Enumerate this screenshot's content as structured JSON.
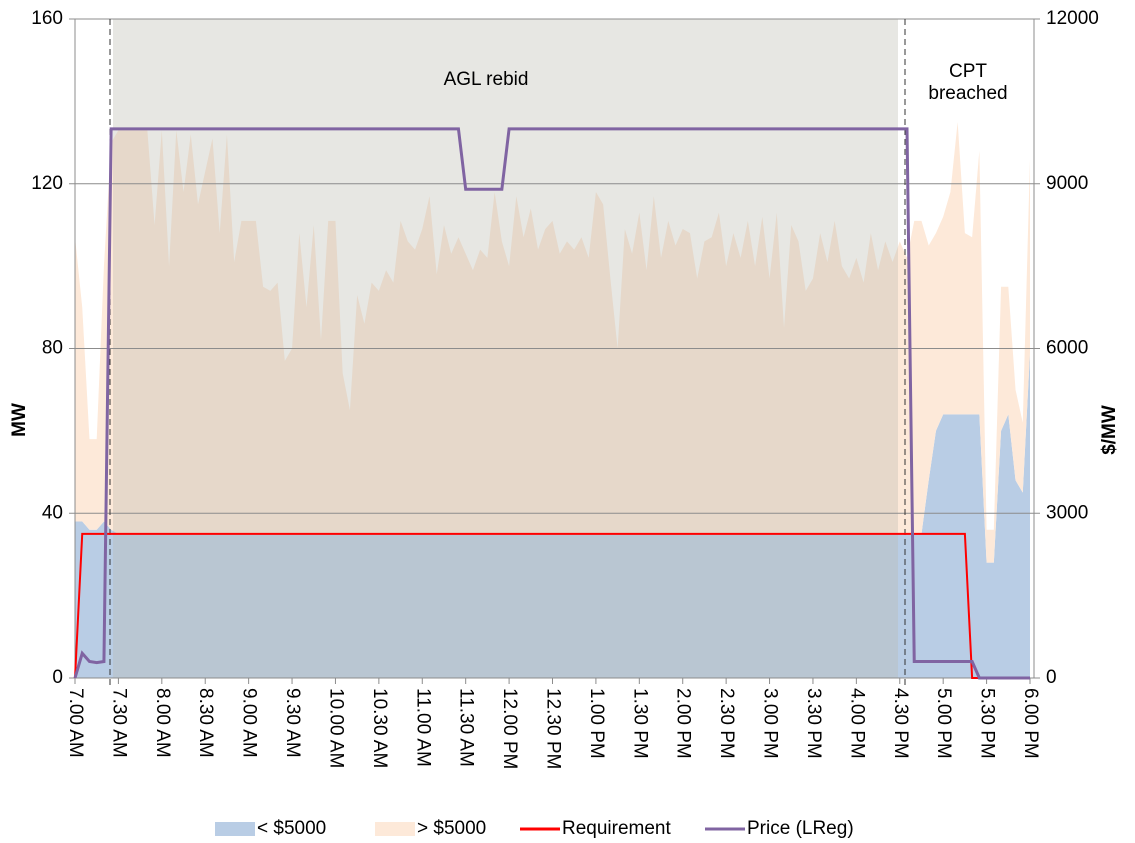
{
  "chart_data": {
    "type": "stacked-area-line",
    "categories": [
      "7.00 AM",
      null,
      null,
      null,
      null,
      null,
      "7.30 AM",
      null,
      null,
      null,
      null,
      null,
      "8.00 AM",
      null,
      null,
      null,
      null,
      null,
      "8.30 AM",
      null,
      null,
      null,
      null,
      null,
      "9.00 AM",
      null,
      null,
      null,
      null,
      null,
      "9.30 AM",
      null,
      null,
      null,
      null,
      null,
      "10.00 AM",
      null,
      null,
      null,
      null,
      null,
      "10.30 AM",
      null,
      null,
      null,
      null,
      null,
      "11.00 AM",
      null,
      null,
      null,
      null,
      null,
      "11.30 AM",
      null,
      null,
      null,
      null,
      null,
      "12.00 PM",
      null,
      null,
      null,
      null,
      null,
      "12.30 PM",
      null,
      null,
      null,
      null,
      null,
      "1.00 PM",
      null,
      null,
      null,
      null,
      null,
      "1.30 PM",
      null,
      null,
      null,
      null,
      null,
      "2.00 PM",
      null,
      null,
      null,
      null,
      null,
      "2.30 PM",
      null,
      null,
      null,
      null,
      null,
      "3.00 PM",
      null,
      null,
      null,
      null,
      null,
      "3.30 PM",
      null,
      null,
      null,
      null,
      null,
      "4.00 PM",
      null,
      null,
      null,
      null,
      null,
      "4.30 PM",
      null,
      null,
      null,
      null,
      null,
      "5.00 PM",
      null,
      null,
      null,
      null,
      null,
      "5.30 PM",
      null,
      null,
      null,
      null,
      null,
      "6.00 PM"
    ],
    "series": [
      {
        "name": "< $5000",
        "kind": "area",
        "color": "#b9cde5",
        "values": [
          38,
          38,
          36,
          36,
          38,
          36,
          35,
          35,
          35,
          35,
          35,
          35,
          35,
          35,
          35,
          35,
          35,
          35,
          35,
          35,
          35,
          35,
          35,
          35,
          35,
          35,
          35,
          35,
          35,
          35,
          35,
          35,
          35,
          35,
          35,
          35,
          35,
          35,
          35,
          35,
          35,
          35,
          35,
          35,
          35,
          35,
          35,
          35,
          35,
          35,
          35,
          35,
          35,
          35,
          35,
          35,
          35,
          35,
          35,
          35,
          35,
          35,
          35,
          35,
          35,
          35,
          35,
          35,
          35,
          35,
          35,
          35,
          35,
          35,
          35,
          35,
          35,
          35,
          35,
          35,
          35,
          35,
          35,
          35,
          35,
          35,
          35,
          35,
          35,
          35,
          35,
          35,
          35,
          35,
          35,
          35,
          35,
          35,
          35,
          35,
          35,
          35,
          35,
          35,
          35,
          35,
          35,
          35,
          35,
          35,
          35,
          35,
          35,
          35,
          35,
          35,
          35,
          35,
          48,
          60,
          64,
          64,
          64,
          64,
          64,
          64,
          28,
          28,
          60,
          64,
          48,
          45,
          79
        ]
      },
      {
        "name": "> $5000",
        "kind": "area",
        "color": "#fde9d9",
        "values": [
          69,
          52,
          22,
          22,
          62,
          94,
          98,
          98,
          98,
          98,
          98,
          75,
          98,
          65,
          98,
          83,
          97,
          80,
          88,
          96,
          73,
          97,
          66,
          76,
          76,
          76,
          60,
          59,
          61,
          42,
          45,
          73,
          55,
          75,
          47,
          76,
          76,
          39,
          30,
          58,
          51,
          61,
          59,
          64,
          61,
          76,
          71,
          69,
          74,
          82,
          63,
          75,
          68,
          72,
          68,
          64,
          69,
          67,
          83,
          71,
          65,
          82,
          72,
          79,
          69,
          74,
          76,
          68,
          71,
          69,
          72,
          67,
          83,
          80,
          62,
          45,
          74,
          68,
          78,
          64,
          82,
          67,
          76,
          70,
          74,
          73,
          62,
          71,
          72,
          78,
          65,
          73,
          67,
          76,
          65,
          77,
          62,
          78,
          50,
          75,
          71,
          59,
          62,
          73,
          66,
          76,
          65,
          62,
          67,
          61,
          73,
          64,
          71,
          66,
          71,
          67,
          76,
          76,
          57,
          48,
          48,
          54,
          71,
          44,
          43,
          64,
          8,
          8,
          35,
          31,
          22,
          17,
          47
        ]
      },
      {
        "name": "Requirement",
        "kind": "line",
        "color": "#ff0000",
        "values": [
          0,
          35,
          35,
          35,
          35,
          35,
          35,
          35,
          35,
          35,
          35,
          35,
          35,
          35,
          35,
          35,
          35,
          35,
          35,
          35,
          35,
          35,
          35,
          35,
          35,
          35,
          35,
          35,
          35,
          35,
          35,
          35,
          35,
          35,
          35,
          35,
          35,
          35,
          35,
          35,
          35,
          35,
          35,
          35,
          35,
          35,
          35,
          35,
          35,
          35,
          35,
          35,
          35,
          35,
          35,
          35,
          35,
          35,
          35,
          35,
          35,
          35,
          35,
          35,
          35,
          35,
          35,
          35,
          35,
          35,
          35,
          35,
          35,
          35,
          35,
          35,
          35,
          35,
          35,
          35,
          35,
          35,
          35,
          35,
          35,
          35,
          35,
          35,
          35,
          35,
          35,
          35,
          35,
          35,
          35,
          35,
          35,
          35,
          35,
          35,
          35,
          35,
          35,
          35,
          35,
          35,
          35,
          35,
          35,
          35,
          35,
          35,
          35,
          35,
          35,
          35,
          35,
          35,
          35,
          35,
          35,
          35,
          35,
          35,
          0,
          0,
          0,
          0,
          0,
          0,
          0,
          0,
          0
        ]
      },
      {
        "name": "Price (LReg)",
        "kind": "line",
        "axis": "y2",
        "color": "#8064a2",
        "values": [
          0,
          450,
          300,
          280,
          300,
          10000,
          10000,
          10000,
          10000,
          10000,
          10000,
          10000,
          10000,
          10000,
          10000,
          10000,
          10000,
          10000,
          10000,
          10000,
          10000,
          10000,
          10000,
          10000,
          10000,
          10000,
          10000,
          10000,
          10000,
          10000,
          10000,
          10000,
          10000,
          10000,
          10000,
          10000,
          10000,
          10000,
          10000,
          10000,
          10000,
          10000,
          10000,
          10000,
          10000,
          10000,
          10000,
          10000,
          10000,
          10000,
          10000,
          10000,
          10000,
          10000,
          8900,
          8900,
          8900,
          8900,
          8900,
          8900,
          10000,
          10000,
          10000,
          10000,
          10000,
          10000,
          10000,
          10000,
          10000,
          10000,
          10000,
          10000,
          10000,
          10000,
          10000,
          10000,
          10000,
          10000,
          10000,
          10000,
          10000,
          10000,
          10000,
          10000,
          10000,
          10000,
          10000,
          10000,
          10000,
          10000,
          10000,
          10000,
          10000,
          10000,
          10000,
          10000,
          10000,
          10000,
          10000,
          10000,
          10000,
          10000,
          10000,
          10000,
          10000,
          10000,
          10000,
          10000,
          10000,
          10000,
          10000,
          10000,
          10000,
          10000,
          10000,
          10000,
          300,
          300,
          300,
          300,
          300,
          300,
          300,
          300,
          300,
          0,
          0,
          0,
          0,
          0,
          0,
          0,
          0
        ]
      }
    ],
    "ylabel": "MW",
    "y2label": "$/MW",
    "ylim": [
      0,
      160
    ],
    "yticks": [
      0,
      40,
      80,
      120,
      160
    ],
    "y2lim": [
      0,
      12000
    ],
    "y2ticks": [
      0,
      3000,
      6000,
      9000,
      12000
    ],
    "grid": true,
    "legend": "bottom",
    "annotations": [
      {
        "lines": [
          "AGL rebid"
        ]
      },
      {
        "lines": [
          "CPT",
          "breached"
        ]
      }
    ]
  }
}
